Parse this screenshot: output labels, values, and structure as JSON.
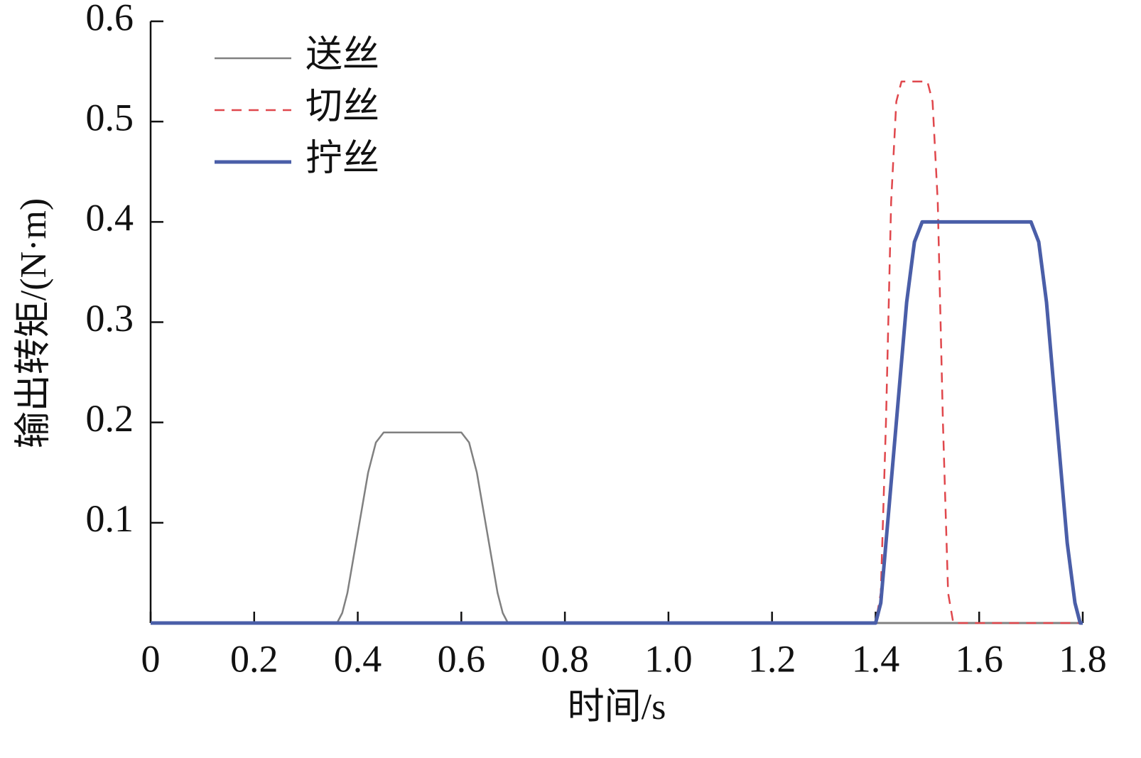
{
  "chart_data": {
    "type": "line",
    "xlabel": "时间/s",
    "ylabel": "输出转矩/(N·m)",
    "xlim": [
      0,
      1.8
    ],
    "ylim": [
      0,
      0.6
    ],
    "xticks": [
      0,
      0.2,
      0.4,
      0.6,
      0.8,
      {
        "value": 1,
        "label": "1.0"
      },
      1.2,
      1.4,
      1.6,
      1.8
    ],
    "yticks": [
      0.1,
      0.2,
      0.3,
      0.4,
      0.5,
      0.6
    ],
    "legend": "upper left",
    "grid": false,
    "series": [
      {
        "name": "送丝",
        "color": "#808080",
        "dash": false,
        "x": [
          0,
          0.36,
          0.37,
          0.38,
          0.4,
          0.42,
          0.435,
          0.45,
          0.6,
          0.615,
          0.63,
          0.65,
          0.67,
          0.68,
          0.69,
          1.8
        ],
        "values": [
          0,
          0,
          0.01,
          0.03,
          0.09,
          0.15,
          0.18,
          0.19,
          0.19,
          0.18,
          0.15,
          0.09,
          0.03,
          0.01,
          0,
          0
        ]
      },
      {
        "name": "切丝",
        "color": "#e0474c",
        "dash": true,
        "x": [
          0,
          1.4,
          1.41,
          1.42,
          1.43,
          1.44,
          1.45,
          1.5,
          1.51,
          1.52,
          1.53,
          1.54,
          1.55,
          1.8
        ],
        "values": [
          0,
          0,
          0.03,
          0.2,
          0.42,
          0.52,
          0.54,
          0.54,
          0.52,
          0.42,
          0.2,
          0.03,
          0,
          0
        ]
      },
      {
        "name": "拧丝",
        "color": "#4a5ea8",
        "dash": false,
        "x": [
          0,
          1.4,
          1.41,
          1.42,
          1.44,
          1.46,
          1.475,
          1.49,
          1.7,
          1.715,
          1.73,
          1.75,
          1.77,
          1.785,
          1.795,
          1.8
        ],
        "values": [
          0,
          0,
          0.02,
          0.08,
          0.2,
          0.32,
          0.38,
          0.4,
          0.4,
          0.38,
          0.32,
          0.2,
          0.08,
          0.02,
          0,
          0
        ]
      }
    ]
  }
}
